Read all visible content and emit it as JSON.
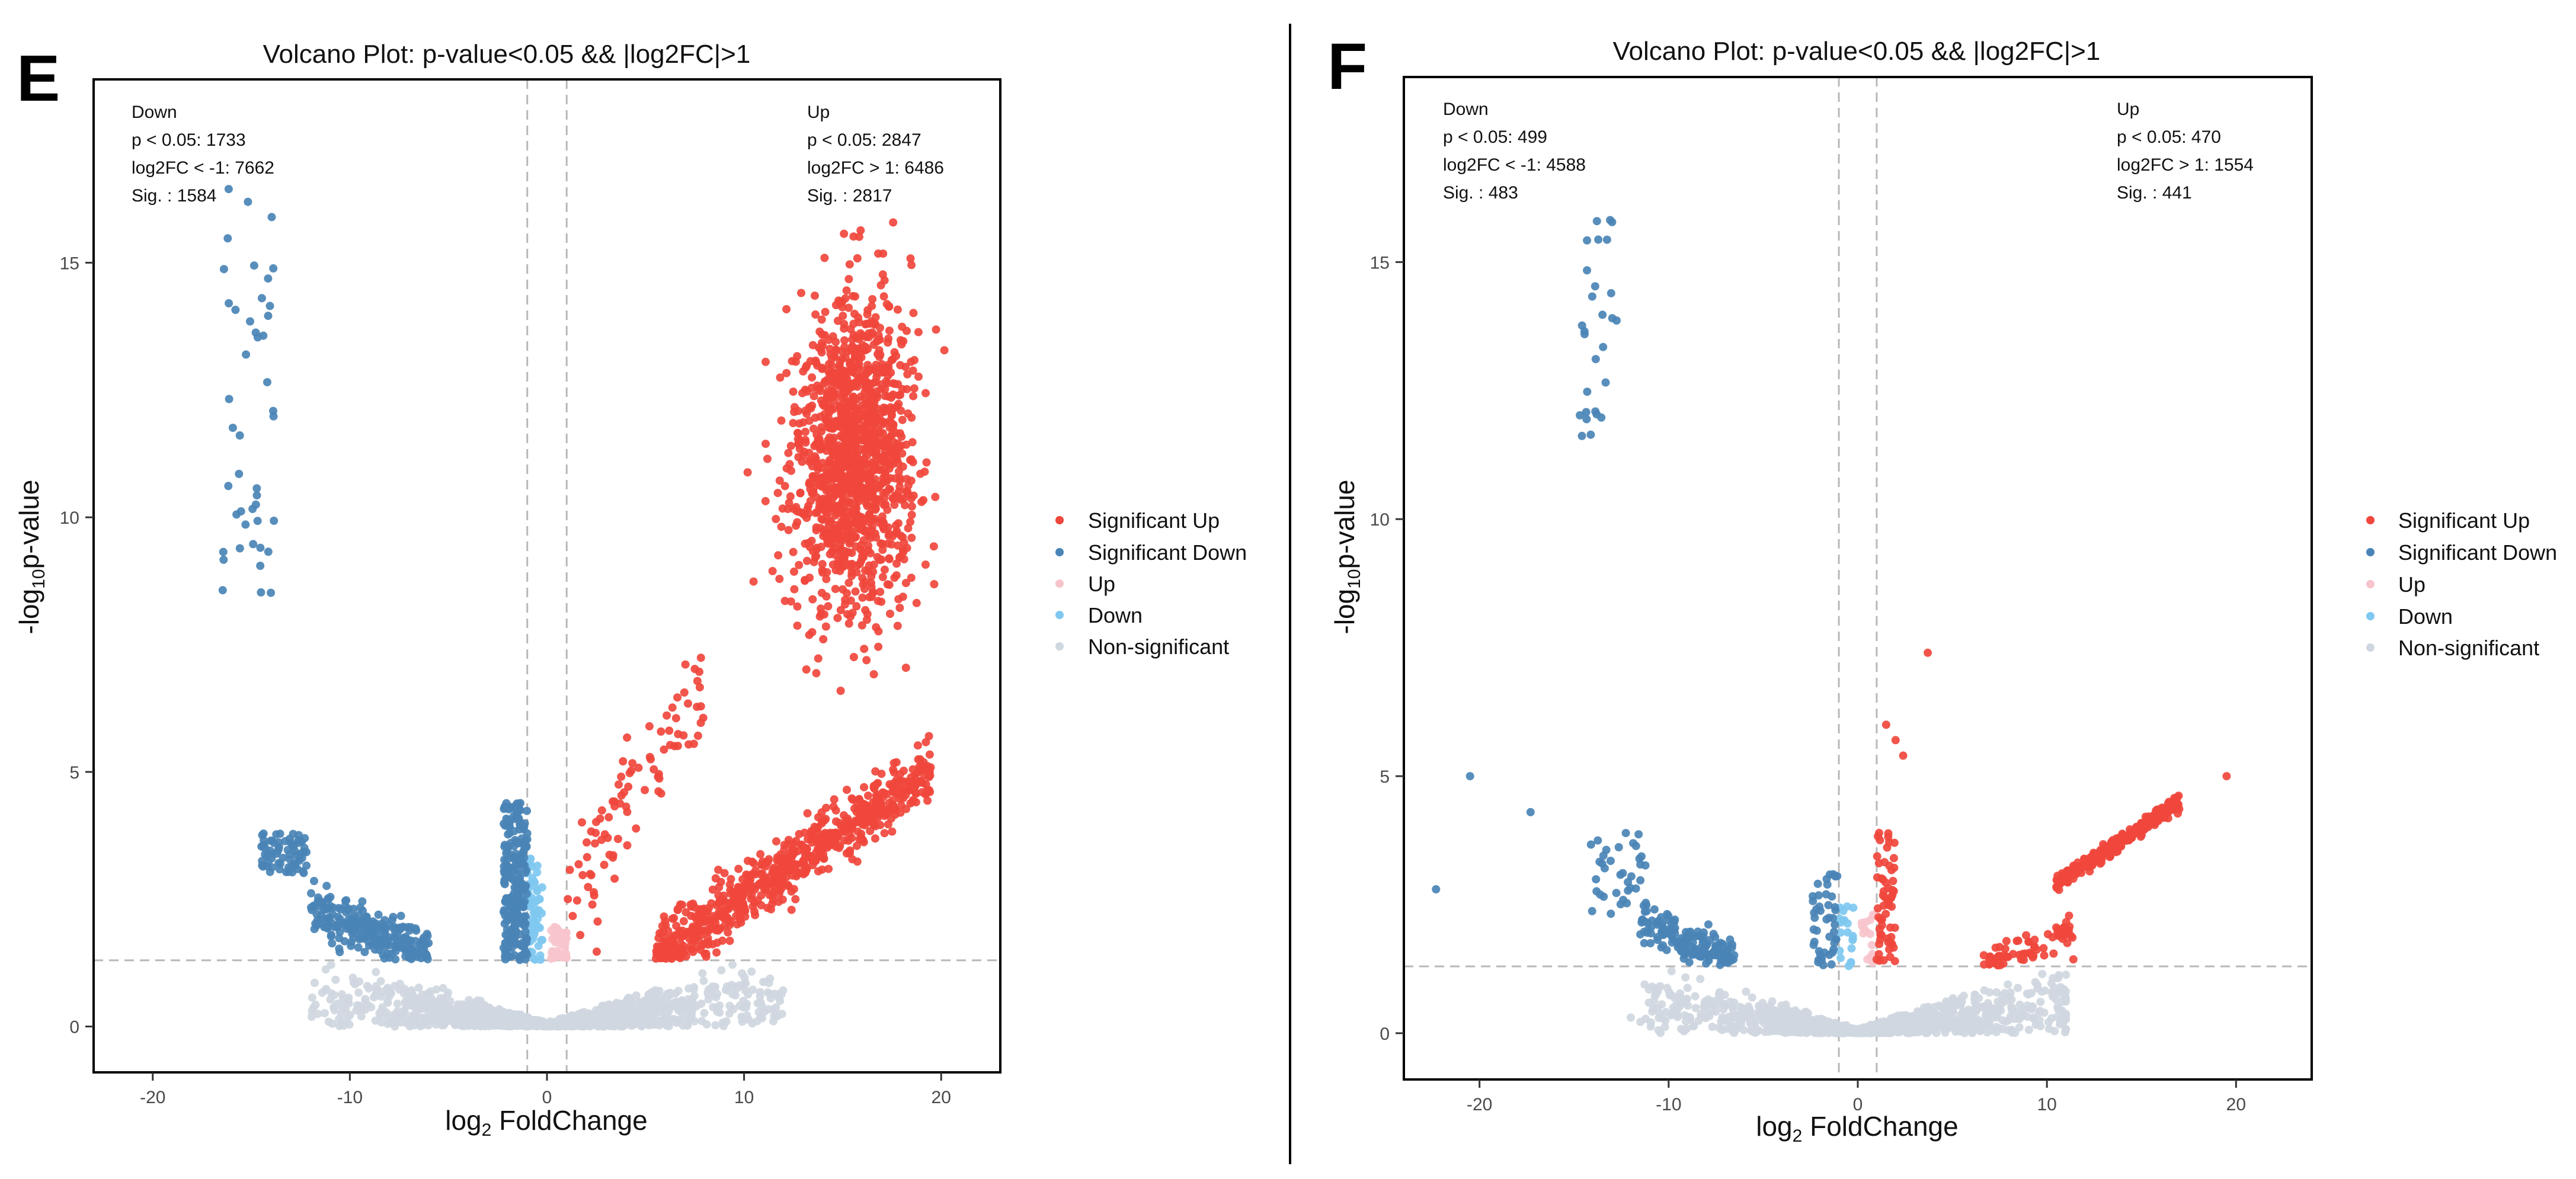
{
  "legend": {
    "items": [
      {
        "label": "Significant Up",
        "color": "#f0463c"
      },
      {
        "label": "Significant Down",
        "color": "#4a84b6"
      },
      {
        "label": "Up",
        "color": "#f7c4cc"
      },
      {
        "label": "Down",
        "color": "#7fc8f0"
      },
      {
        "label": "Non-significant",
        "color": "#cfd7e0"
      }
    ]
  },
  "chart_data": [
    {
      "panel": "E",
      "type": "scatter",
      "title": "Volcano Plot: p-value<0.05 && |log2FC|>1",
      "xlabel_base": "log",
      "xlabel_sub": "2",
      "xlabel_rest": " FoldChange",
      "ylabel_pre": "-log",
      "ylabel_sub": "10",
      "ylabel_post": "p-value",
      "xlim": [
        -23,
        23
      ],
      "ylim": [
        -0.9,
        18.6
      ],
      "xticks": [
        -20,
        -10,
        0,
        10,
        20
      ],
      "yticks": [
        0,
        5,
        10,
        15
      ],
      "vlines": [
        -1,
        1
      ],
      "hline": 1.3,
      "down_annotation": [
        "Down",
        "p < 0.05: 1733",
        "log2FC < -1: 7662",
        "Sig. : 1584"
      ],
      "up_annotation": [
        "Up",
        "p < 0.05: 2847",
        "log2FC > 1: 6486",
        "Sig. : 2817"
      ],
      "clusters": [
        {
          "series": "Non-significant",
          "n": 1500,
          "shape": "ns",
          "xmin": -12,
          "xmax": 12
        },
        {
          "series": "Significant Down",
          "n": 45,
          "shape": "box",
          "x": [
            -16.5,
            -13.8
          ],
          "y": [
            8.5,
            16.5
          ]
        },
        {
          "series": "Significant Down",
          "n": 260,
          "shape": "band",
          "x": [
            -12,
            -6
          ],
          "y0": [
            2.3,
            1.45
          ],
          "spread": 0.45
        },
        {
          "series": "Significant Down",
          "n": 70,
          "shape": "box",
          "x": [
            -14.5,
            -12.2
          ],
          "y": [
            3.0,
            3.8
          ]
        },
        {
          "series": "Significant Down",
          "n": 240,
          "shape": "box",
          "x": [
            -2.2,
            -1.0
          ],
          "y": [
            1.3,
            4.4
          ]
        },
        {
          "series": "Down",
          "n": 60,
          "shape": "box",
          "x": [
            -1.0,
            -0.2
          ],
          "y": [
            1.3,
            3.3
          ]
        },
        {
          "series": "Up",
          "n": 40,
          "shape": "box",
          "x": [
            0.2,
            1.0
          ],
          "y": [
            1.3,
            2.0
          ]
        },
        {
          "series": "Significant Up",
          "n": 1300,
          "shape": "ellipse",
          "cx": 15.5,
          "cy": 11.2,
          "rx": 3.8,
          "ry": 3.3
        },
        {
          "series": "Significant Up",
          "n": 700,
          "shape": "band",
          "x": [
            5.5,
            19.5
          ],
          "y0": [
            1.4,
            5.0
          ],
          "spread": 0.6
        },
        {
          "series": "Significant Up",
          "n": 90,
          "shape": "band",
          "x": [
            1.0,
            8.0
          ],
          "y0": [
            2.2,
            6.8
          ],
          "spread": 1.4
        }
      ]
    },
    {
      "panel": "F",
      "type": "scatter",
      "title": "Volcano Plot: p-value<0.05 && |log2FC|>1",
      "xlabel_base": "log",
      "xlabel_sub": "2",
      "xlabel_rest": " FoldChange",
      "ylabel_pre": "-log",
      "ylabel_sub": "10",
      "ylabel_post": "p-value",
      "xlim": [
        -24,
        24
      ],
      "ylim": [
        -0.9,
        18.6
      ],
      "xticks": [
        -20,
        -10,
        0,
        10,
        20
      ],
      "yticks": [
        0,
        5,
        10,
        15
      ],
      "vlines": [
        -1,
        1
      ],
      "hline": 1.3,
      "down_annotation": [
        "Down",
        "p < 0.05: 499",
        "log2FC < -1: 4588",
        "Sig. : 483"
      ],
      "up_annotation": [
        "Up",
        "p < 0.05: 470",
        "log2FC > 1: 1554",
        "Sig. : 441"
      ],
      "clusters": [
        {
          "series": "Non-significant",
          "n": 1300,
          "shape": "ns",
          "xmin": -12,
          "xmax": 11
        },
        {
          "series": "Significant Down",
          "n": 28,
          "shape": "box",
          "x": [
            -14.7,
            -12.6
          ],
          "y": [
            11.3,
            16.2
          ]
        },
        {
          "series": "Significant Down",
          "n": 160,
          "shape": "band",
          "x": [
            -11.5,
            -6.5
          ],
          "y0": [
            2.2,
            1.4
          ],
          "spread": 0.4
        },
        {
          "series": "Significant Down",
          "n": 35,
          "shape": "box",
          "x": [
            -14.2,
            -11.2
          ],
          "y": [
            2.3,
            3.9
          ]
        },
        {
          "series": "Significant Down",
          "n": 45,
          "shape": "box",
          "x": [
            -2.4,
            -1.0
          ],
          "y": [
            1.3,
            3.1
          ]
        },
        {
          "series": "Down",
          "n": 20,
          "shape": "box",
          "x": [
            -1.0,
            -0.2
          ],
          "y": [
            1.3,
            2.6
          ]
        },
        {
          "series": "Up",
          "n": 15,
          "shape": "box",
          "x": [
            0.2,
            1.0
          ],
          "y": [
            1.3,
            2.5
          ]
        },
        {
          "series": "Significant Up",
          "n": 60,
          "shape": "box",
          "x": [
            1.0,
            2.0
          ],
          "y": [
            1.4,
            3.9
          ]
        },
        {
          "series": "Significant Up",
          "n": 260,
          "shape": "band",
          "x": [
            10.5,
            17.0
          ],
          "y0": [
            2.9,
            4.5
          ],
          "spread": 0.15
        },
        {
          "series": "Significant Up",
          "n": 70,
          "shape": "band",
          "x": [
            6.5,
            11.5
          ],
          "y0": [
            1.3,
            2.0
          ],
          "spread": 0.35
        },
        {
          "series": "Significant Down",
          "n": 3,
          "shape": "points",
          "pts": [
            [
              -22.3,
              2.8
            ],
            [
              -20.5,
              5.0
            ],
            [
              -17.3,
              4.3
            ]
          ]
        },
        {
          "series": "Significant Up",
          "n": 5,
          "shape": "points",
          "pts": [
            [
              3.7,
              7.4
            ],
            [
              2.0,
              5.7
            ],
            [
              19.5,
              5.0
            ],
            [
              1.5,
              6.0
            ],
            [
              2.4,
              5.4
            ]
          ]
        }
      ]
    }
  ]
}
